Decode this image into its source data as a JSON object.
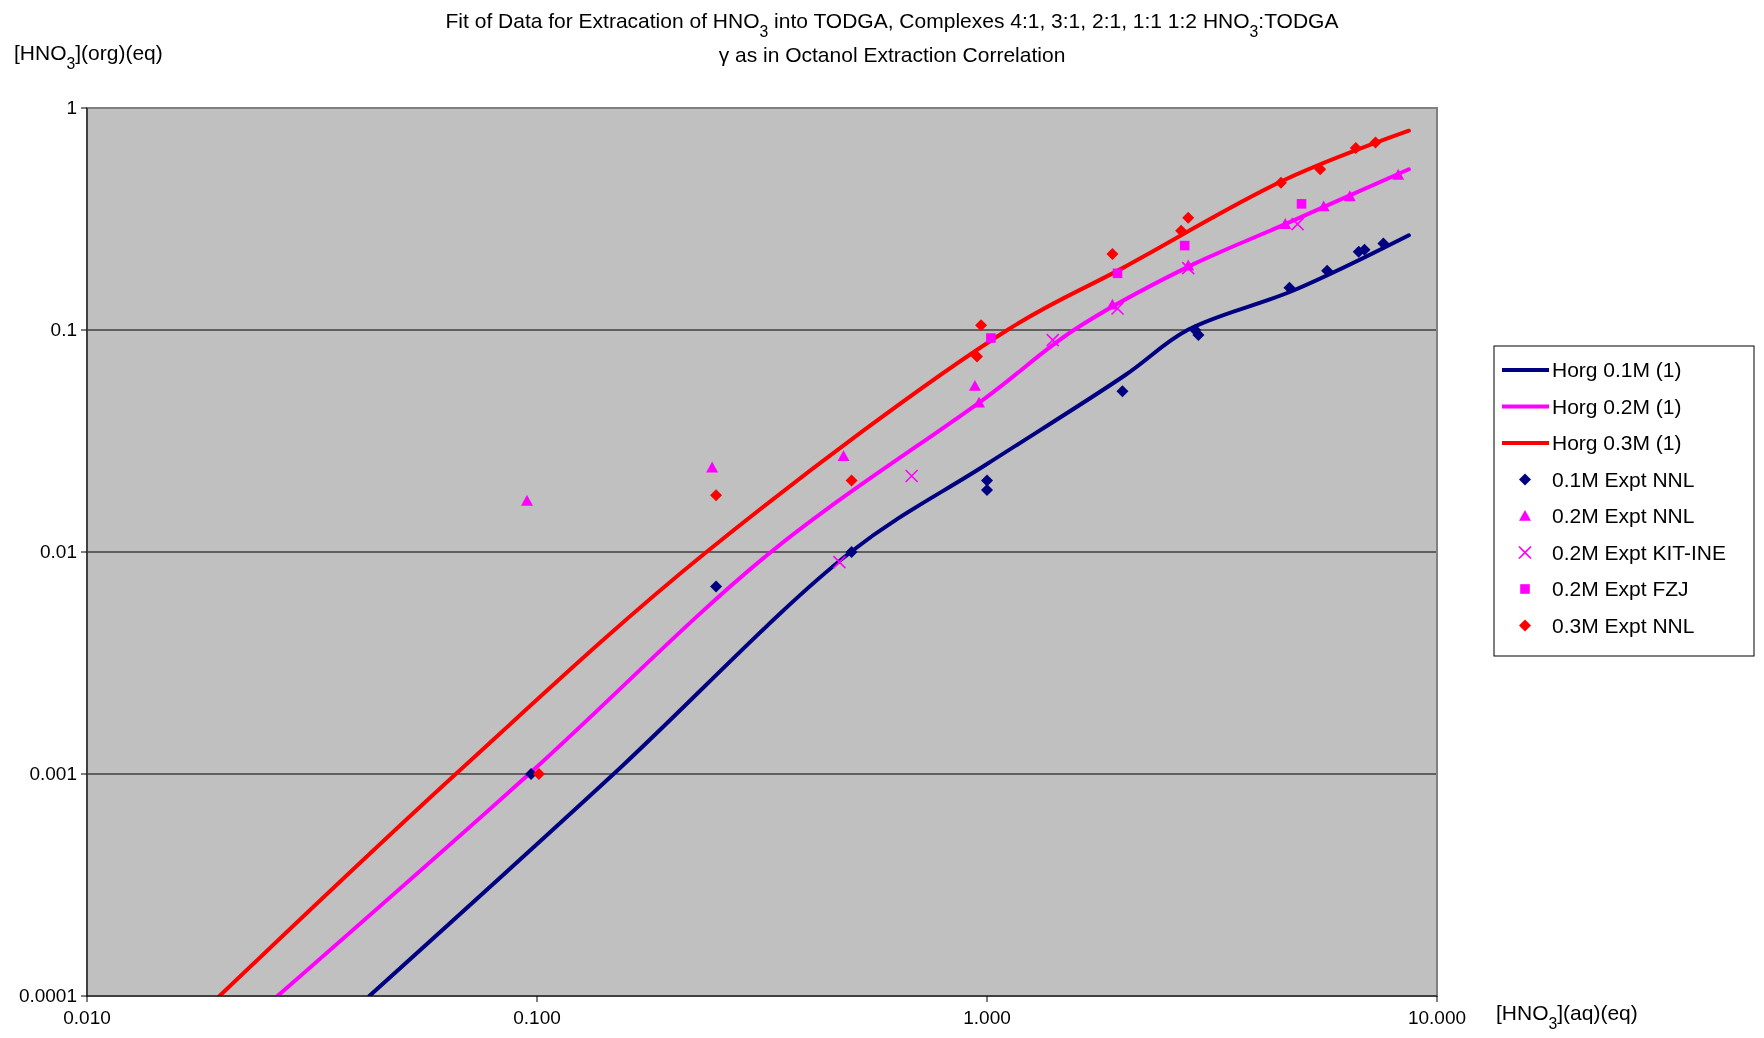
{
  "chart_data": {
    "type": "line",
    "title": "Fit of Data for Extracation of HNO$_{3}$ into TODGA, Complexes 4:1, 3:1, 2:1, 1:1 1:2 HNO$_{3}$:TODGA",
    "subtitle": "γ as in Octanol Extraction Correlation",
    "xlabel": "[HNO$_{3}$](aq)(eq)",
    "ylabel": "[HNO$_{3}$](org)(eq)",
    "log": "xy",
    "xlim": [
      0.01,
      10
    ],
    "ylim": [
      0.0001,
      1
    ],
    "xticks": [
      {
        "value": 0.01,
        "label": "0.010"
      },
      {
        "value": 0.1,
        "label": "0.100"
      },
      {
        "value": 1,
        "label": "1.000"
      },
      {
        "value": 10,
        "label": "10.000"
      }
    ],
    "yticks": [
      0.0001,
      0.001,
      0.01,
      0.1,
      1
    ],
    "grid": "y",
    "legend": "right",
    "series": [
      {
        "name": "Horg 0.1M (1)",
        "marker": "none",
        "color": "#000080",
        "x": [
          0.0424,
          0.148,
          0.498,
          1,
          2.03,
          2.79,
          4.81,
          8.66
        ],
        "values": [
          0.0001,
          0.001,
          0.01,
          0.0249,
          0.0627,
          0.1,
          0.151,
          0.267
        ]
      },
      {
        "name": "Horg 0.2M (1)",
        "marker": "none",
        "color": "#ff00ff",
        "x": [
          0.0265,
          0.096,
          0.331,
          1,
          1.56,
          2.76,
          4.6,
          8.66
        ],
        "values": [
          0.0001,
          0.001,
          0.01,
          0.05,
          0.1,
          0.19,
          0.3,
          0.53
        ]
      },
      {
        "name": "Horg 0.3M (1)",
        "marker": "none",
        "color": "#ff0000",
        "x": [
          0.0197,
          0.066,
          0.238,
          1.11,
          2.0,
          4.54,
          8.66
        ],
        "values": [
          0.0001,
          0.001,
          0.01,
          0.1,
          0.19,
          0.47,
          0.79
        ]
      },
      {
        "name": "0.1M Expt NNL",
        "type": "scatter",
        "marker": "diamond",
        "color": "#000080",
        "x": [
          0.097,
          0.25,
          0.5,
          1.0,
          1.0,
          2.0,
          2.9,
          2.95,
          4.7,
          5.7,
          6.7,
          6.9,
          7.6
        ],
        "values": [
          0.001,
          0.007,
          0.01,
          0.021,
          0.019,
          0.053,
          0.1,
          0.095,
          0.155,
          0.185,
          0.225,
          0.23,
          0.245
        ]
      },
      {
        "name": "0.2M Expt NNL",
        "type": "scatter",
        "marker": "triangle",
        "color": "#ff00ff",
        "x": [
          0.095,
          0.245,
          0.48,
          0.94,
          0.96,
          1.9,
          2.8,
          4.6,
          5.6,
          6.4,
          8.2
        ],
        "values": [
          0.017,
          0.024,
          0.027,
          0.056,
          0.047,
          0.13,
          0.195,
          0.3,
          0.36,
          0.4,
          0.5
        ]
      },
      {
        "name": "0.2M Expt KIT-INE",
        "type": "scatter",
        "marker": "cross",
        "color": "#ff00ff",
        "x": [
          0.47,
          0.68,
          1.4,
          1.95,
          2.8,
          4.9
        ],
        "values": [
          0.009,
          0.022,
          0.09,
          0.125,
          0.19,
          0.3
        ]
      },
      {
        "name": "0.2M Expt FZJ",
        "type": "scatter",
        "marker": "square",
        "color": "#ff00ff",
        "x": [
          1.02,
          1.95,
          2.75,
          5.0
        ],
        "values": [
          0.092,
          0.18,
          0.24,
          0.37
        ]
      },
      {
        "name": "0.3M Expt NNL",
        "type": "scatter",
        "marker": "diamond",
        "color": "#ff0000",
        "x": [
          0.101,
          0.25,
          0.5,
          0.95,
          0.97,
          1.9,
          2.7,
          2.8,
          4.5,
          5.5,
          6.6,
          7.3
        ],
        "values": [
          0.001,
          0.018,
          0.021,
          0.076,
          0.105,
          0.22,
          0.28,
          0.32,
          0.46,
          0.53,
          0.66,
          0.7
        ]
      }
    ]
  }
}
